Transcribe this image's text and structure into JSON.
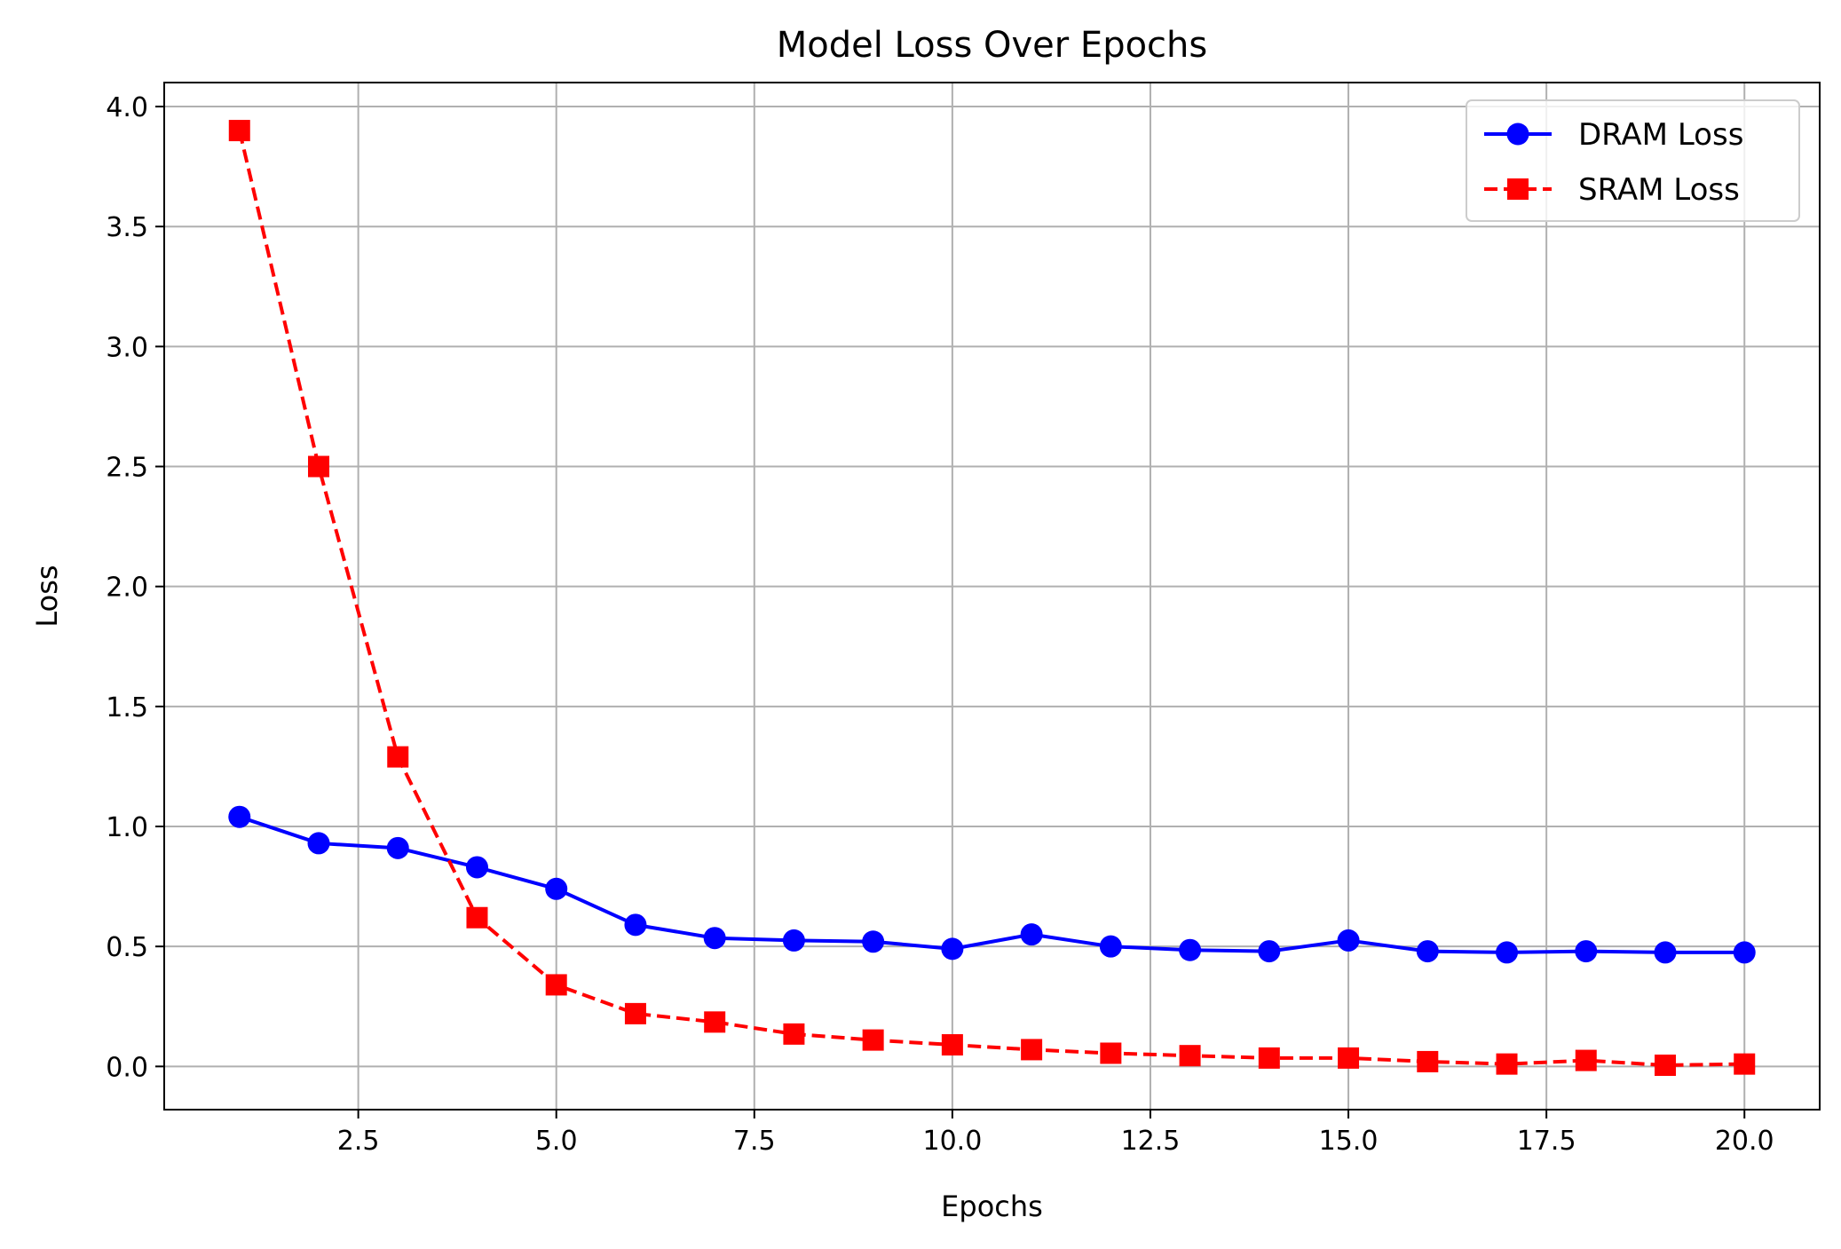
{
  "chart_data": {
    "type": "line",
    "title": "Model Loss Over Epochs",
    "xlabel": "Epochs",
    "ylabel": "Loss",
    "xlim": [
      0.05,
      20.95
    ],
    "ylim": [
      -0.18,
      4.1
    ],
    "xticks": [
      2.5,
      5.0,
      7.5,
      10.0,
      12.5,
      15.0,
      17.5,
      20.0
    ],
    "xtick_labels": [
      "2.5",
      "5.0",
      "7.5",
      "10.0",
      "12.5",
      "15.0",
      "17.5",
      "20.0"
    ],
    "yticks": [
      0.0,
      0.5,
      1.0,
      1.5,
      2.0,
      2.5,
      3.0,
      3.5,
      4.0
    ],
    "ytick_labels": [
      "0.0",
      "0.5",
      "1.0",
      "1.5",
      "2.0",
      "2.5",
      "3.0",
      "3.5",
      "4.0"
    ],
    "grid": true,
    "legend_position": "top-right",
    "x": [
      1,
      2,
      3,
      4,
      5,
      6,
      7,
      8,
      9,
      10,
      11,
      12,
      13,
      14,
      15,
      16,
      17,
      18,
      19,
      20
    ],
    "series": [
      {
        "name": "DRAM Loss",
        "color": "#0000ff",
        "line_style": "solid",
        "marker": "circle",
        "values": [
          1.04,
          0.93,
          0.91,
          0.83,
          0.74,
          0.59,
          0.535,
          0.525,
          0.52,
          0.49,
          0.55,
          0.5,
          0.485,
          0.48,
          0.525,
          0.48,
          0.475,
          0.48,
          0.475,
          0.475
        ]
      },
      {
        "name": "SRAM Loss",
        "color": "#ff0000",
        "line_style": "dashed",
        "marker": "square",
        "values": [
          3.9,
          2.5,
          1.29,
          0.62,
          0.34,
          0.22,
          0.185,
          0.135,
          0.11,
          0.09,
          0.07,
          0.055,
          0.045,
          0.035,
          0.035,
          0.02,
          0.01,
          0.025,
          0.005,
          0.01
        ]
      }
    ]
  }
}
